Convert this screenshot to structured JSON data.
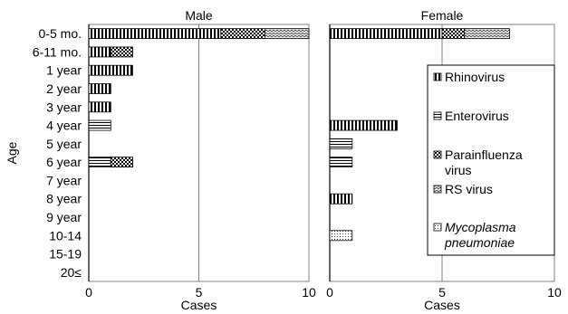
{
  "chart_data": {
    "type": "bar",
    "stacked": true,
    "orientation": "horizontal",
    "ylabel": "Age",
    "xlabel": "Cases",
    "xlim": [
      0,
      10
    ],
    "xticks": [
      "0",
      "5",
      "10"
    ],
    "gridlines_at": [
      5
    ],
    "categories": [
      "0-5 mo.",
      "6-11 mo.",
      "1 year",
      "2 year",
      "3 year",
      "4 year",
      "5 year",
      "6 year",
      "7 year",
      "8 year",
      "9 year",
      "10-14",
      "15-19",
      "20≤"
    ],
    "legend": {
      "placement": "inside-right-of-female-panel",
      "entries": [
        {
          "key": "rhino",
          "lines": [
            "Rhinovirus"
          ],
          "italic": false
        },
        {
          "key": "entero",
          "lines": [
            "Enterovirus"
          ],
          "italic": false
        },
        {
          "key": "paraflu",
          "lines": [
            "Parainfluenza",
            "virus"
          ],
          "italic": false
        },
        {
          "key": "rsv",
          "lines": [
            "RS virus"
          ],
          "italic": false
        },
        {
          "key": "myco",
          "lines": [
            "Mycoplasma",
            "pneumoniae"
          ],
          "italic": true
        }
      ]
    },
    "panels": [
      {
        "title": "Male",
        "series": [
          {
            "key": "rhino",
            "values": [
              6,
              1,
              2,
              1,
              1,
              0,
              0,
              0,
              0,
              0,
              0,
              0,
              0,
              0
            ]
          },
          {
            "key": "entero",
            "values": [
              0,
              0,
              0,
              0,
              0,
              1,
              0,
              1,
              0,
              0,
              0,
              0,
              0,
              0
            ]
          },
          {
            "key": "paraflu",
            "values": [
              2,
              1,
              0,
              0,
              0,
              0,
              0,
              1,
              0,
              0,
              0,
              0,
              0,
              0
            ]
          },
          {
            "key": "rsv",
            "values": [
              2,
              0,
              0,
              0,
              0,
              0,
              0,
              0,
              0,
              0,
              0,
              0,
              0,
              0
            ]
          },
          {
            "key": "myco",
            "values": [
              0,
              0,
              0,
              0,
              0,
              0,
              0,
              0,
              0,
              0,
              0,
              0,
              0,
              0
            ]
          }
        ]
      },
      {
        "title": "Female",
        "series": [
          {
            "key": "rhino",
            "values": [
              5,
              0,
              0,
              0,
              0,
              3,
              0,
              0,
              0,
              1,
              0,
              0,
              0,
              0
            ]
          },
          {
            "key": "entero",
            "values": [
              0,
              0,
              0,
              0,
              0,
              0,
              1,
              1,
              0,
              0,
              0,
              0,
              0,
              0
            ]
          },
          {
            "key": "paraflu",
            "values": [
              1,
              0,
              0,
              0,
              0,
              0,
              0,
              0,
              0,
              0,
              0,
              0,
              0,
              0
            ]
          },
          {
            "key": "rsv",
            "values": [
              2,
              0,
              0,
              0,
              0,
              0,
              0,
              0,
              0,
              0,
              0,
              0,
              0,
              0
            ]
          },
          {
            "key": "myco",
            "values": [
              0,
              0,
              0,
              0,
              0,
              0,
              0,
              0,
              0,
              0,
              0,
              1,
              0,
              0
            ]
          }
        ]
      }
    ]
  }
}
